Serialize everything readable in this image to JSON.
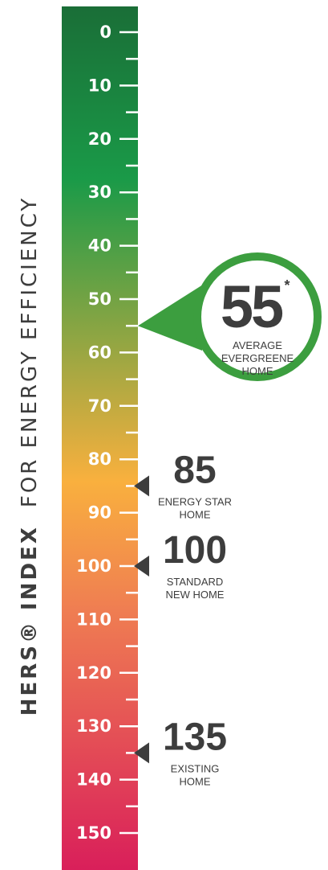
{
  "title": {
    "bold": "HERS® INDEX",
    "light": "FOR ENERGY EFFICIENCY"
  },
  "scale": {
    "min": 0,
    "max": 150,
    "major_ticks": [
      "0",
      "10",
      "20",
      "30",
      "40",
      "50",
      "60",
      "70",
      "80",
      "90",
      "100",
      "110",
      "120",
      "130",
      "140",
      "150"
    ],
    "minor_step": 5,
    "gradient_colors": [
      "#1a6e37",
      "#1a9a48",
      "#f9b03e",
      "#ef7d52",
      "#d91f5a"
    ]
  },
  "callouts": [
    {
      "value": 55,
      "number": "55",
      "mark": "*",
      "label_lines": [
        "AVERAGE",
        "EVERGREENE",
        "HOME"
      ],
      "style": "bubble",
      "color": "#3c9e3f"
    },
    {
      "value": 85,
      "number": "85",
      "label_lines": [
        "ENERGY STAR",
        "HOME"
      ],
      "style": "arrow"
    },
    {
      "value": 100,
      "number": "100",
      "label_lines": [
        "STANDARD",
        "NEW HOME"
      ],
      "style": "arrow"
    },
    {
      "value": 135,
      "number": "135",
      "label_lines": [
        "EXISTING",
        "HOME"
      ],
      "style": "arrow"
    }
  ]
}
